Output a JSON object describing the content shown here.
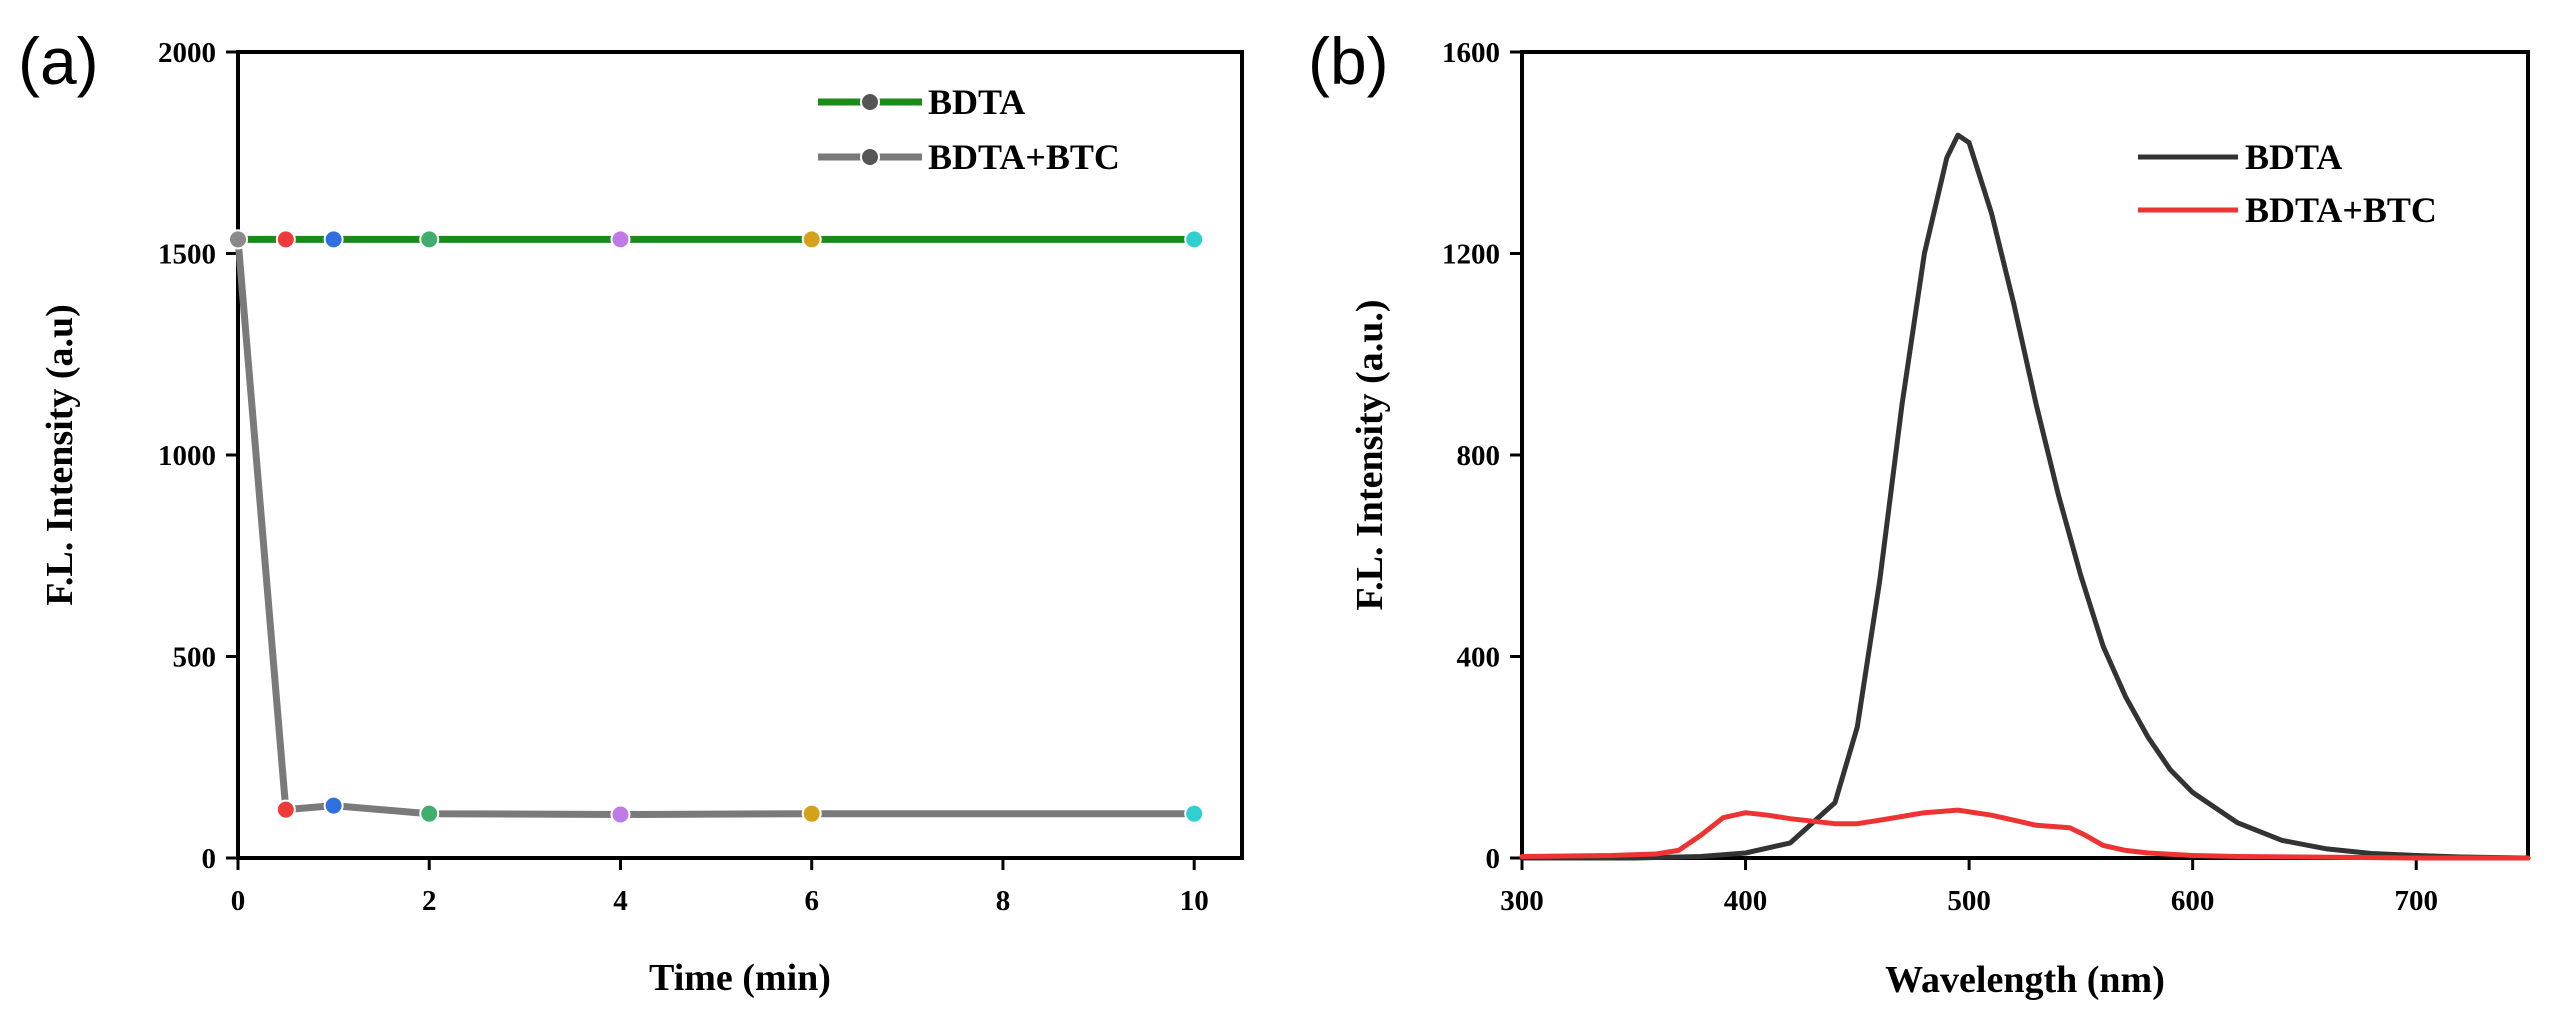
{
  "figure": {
    "panels": [
      "(a)",
      "(b)"
    ]
  },
  "chart_data": [
    {
      "type": "line",
      "panel": "(a)",
      "title": "",
      "xlabel": "Time (min)",
      "ylabel": "F.L. Intensity (a.u)",
      "xlim": [
        0,
        10.5
      ],
      "ylim": [
        0,
        2000
      ],
      "xticks": [
        0,
        2,
        4,
        6,
        8,
        10
      ],
      "yticks": [
        0,
        500,
        1000,
        1500,
        2000
      ],
      "legend_position": "top-right",
      "marker_colors": [
        "#8a8a8a",
        "#ee3a3a",
        "#2f6fe0",
        "#3fae6e",
        "#c07ae8",
        "#d4a21a",
        "#30d0d0"
      ],
      "series": [
        {
          "name": "BDTA",
          "color": "#1a8a1a",
          "x": [
            0,
            0.5,
            1,
            2,
            4,
            6,
            10
          ],
          "values": [
            1535,
            1535,
            1535,
            1535,
            1535,
            1535,
            1535
          ]
        },
        {
          "name": "BDTA+BTC",
          "color": "#7a7a7a",
          "x": [
            0,
            0.5,
            1,
            2,
            4,
            6,
            10
          ],
          "values": [
            1535,
            120,
            130,
            110,
            108,
            110,
            110
          ]
        }
      ]
    },
    {
      "type": "line",
      "panel": "(b)",
      "title": "",
      "xlabel": "Wavelength (nm)",
      "ylabel": "F.L. Intensity (a.u.)",
      "xlim": [
        300,
        750
      ],
      "ylim": [
        0,
        1600
      ],
      "xticks": [
        300,
        400,
        500,
        600,
        700
      ],
      "yticks": [
        0,
        400,
        800,
        1200,
        1600
      ],
      "legend_position": "top-right",
      "series": [
        {
          "name": "BDTA",
          "color": "#333333",
          "x": [
            300,
            350,
            380,
            400,
            420,
            440,
            450,
            460,
            470,
            480,
            490,
            495,
            500,
            510,
            520,
            530,
            540,
            550,
            560,
            570,
            580,
            590,
            600,
            620,
            640,
            660,
            680,
            700,
            720,
            750
          ],
          "values": [
            0,
            0,
            3,
            10,
            30,
            110,
            260,
            550,
            900,
            1200,
            1390,
            1435,
            1420,
            1280,
            1100,
            900,
            720,
            560,
            420,
            320,
            240,
            175,
            130,
            70,
            35,
            18,
            9,
            5,
            2,
            0
          ]
        },
        {
          "name": "BDTA+BTC",
          "color": "#ee3333",
          "x": [
            300,
            340,
            360,
            370,
            380,
            390,
            400,
            410,
            420,
            440,
            450,
            460,
            480,
            495,
            510,
            520,
            530,
            545,
            552,
            560,
            570,
            580,
            600,
            620,
            650,
            700,
            750
          ],
          "values": [
            3,
            5,
            8,
            15,
            45,
            80,
            90,
            85,
            78,
            68,
            68,
            75,
            90,
            95,
            85,
            75,
            65,
            60,
            45,
            25,
            15,
            10,
            5,
            3,
            2,
            0,
            0
          ]
        }
      ]
    }
  ]
}
